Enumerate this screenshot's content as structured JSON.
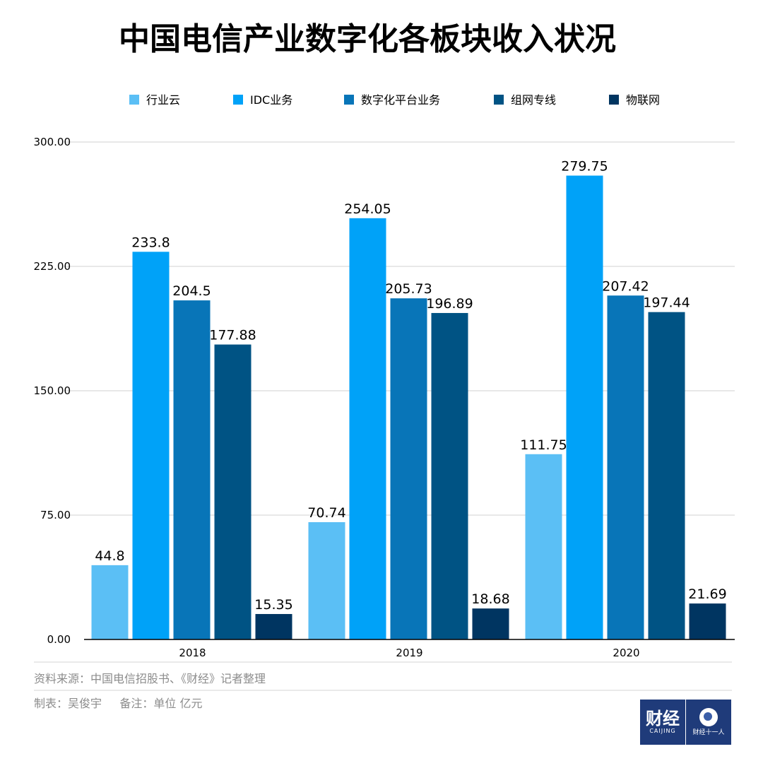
{
  "chart_data": {
    "type": "bar",
    "title": "中国电信产业数字化各板块收入状况",
    "categories": [
      "2018",
      "2019",
      "2020"
    ],
    "series": [
      {
        "name": "行业云",
        "color": "#5bbff5",
        "values": [
          44.8,
          70.74,
          111.75
        ],
        "labels": [
          "44.8",
          "70.74",
          "111.75"
        ]
      },
      {
        "name": "IDC业务",
        "color": "#00a2f8",
        "values": [
          233.8,
          254.05,
          279.75
        ],
        "labels": [
          "233.8",
          "254.05",
          "279.75"
        ]
      },
      {
        "name": "数字化平台业务",
        "color": "#0875b8",
        "values": [
          204.5,
          205.73,
          207.42
        ],
        "labels": [
          "204.5",
          "205.73",
          "207.42"
        ]
      },
      {
        "name": "组网专线",
        "color": "#005384",
        "values": [
          177.88,
          196.89,
          197.44
        ],
        "labels": [
          "177.88",
          "196.89",
          "197.44"
        ]
      },
      {
        "name": "物联网",
        "color": "#003561",
        "values": [
          15.35,
          18.68,
          21.69
        ],
        "labels": [
          "15.35",
          "18.68",
          "21.69"
        ]
      }
    ],
    "ylim": [
      0,
      300
    ],
    "yticks": [
      0,
      75,
      150,
      225,
      300
    ],
    "ytick_labels": [
      "0.00",
      "75.00",
      "150.00",
      "225.00",
      "300.00"
    ],
    "xlabel": "",
    "ylabel": "",
    "grid": true,
    "legend_position": "top"
  },
  "footer": {
    "source": "资料来源：中国电信招股书、《财经》记者整理",
    "credit": "制表：吴俊宇     备注：单位 亿元"
  },
  "logos": {
    "left_main": "财经",
    "left_sub": "CAIJING",
    "right_text": "财经十一人"
  },
  "colors": {
    "grid": "#d0d0d0",
    "axis": "#000000",
    "text": "#000000",
    "footer_text": "#8c8c8c",
    "rule": "#d6d6d6"
  }
}
